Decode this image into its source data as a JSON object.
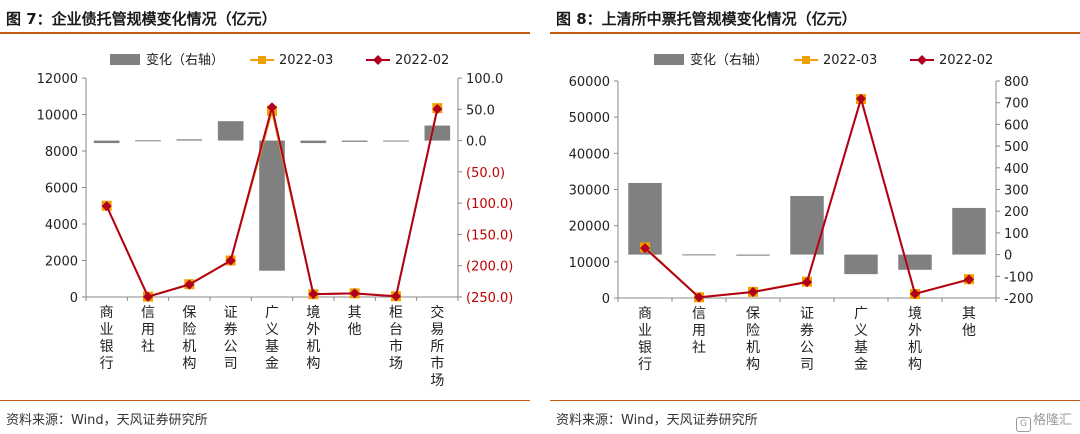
{
  "watermark": "格隆汇",
  "chart_data": [
    {
      "type": "bar",
      "title": "图 7：企业债托管规模变化情况（亿元）",
      "source": "资料来源：Wind，天风证券研究所",
      "categories": [
        "商业银行",
        "信用社",
        "保险机构",
        "证券公司",
        "广义基金",
        "境外机构",
        "其他",
        "柜台市场",
        "交易所市场"
      ],
      "legend": [
        "变化（右轴）",
        "2022-03",
        "2022-02"
      ],
      "series": [
        {
          "name": "变化（右轴）",
          "axis": "right",
          "kind": "bar",
          "color": "#808080",
          "values": [
            -4,
            0.5,
            2,
            31,
            -208,
            -4,
            -2,
            0,
            24
          ]
        },
        {
          "name": "2022-03",
          "axis": "left",
          "kind": "line",
          "color": "#f2a000",
          "values": [
            5000,
            20,
            700,
            2000,
            10200,
            150,
            200,
            40,
            10350
          ]
        },
        {
          "name": "2022-02",
          "axis": "left",
          "kind": "line",
          "color": "#b0001e",
          "values": [
            4980,
            15,
            680,
            1990,
            10400,
            155,
            198,
            38,
            10300
          ]
        }
      ],
      "y_left": {
        "min": 0,
        "max": 12000,
        "ticks": [
          "0",
          "2000",
          "4000",
          "6000",
          "8000",
          "10000",
          "12000"
        ]
      },
      "y_right": {
        "min": -250,
        "max": 100,
        "ticks": [
          "(250.0)",
          "(200.0)",
          "(150.0)",
          "(100.0)",
          "(50.0)",
          "0.0",
          "50.0",
          "100.0"
        ],
        "negative_color": "#c00000"
      }
    },
    {
      "type": "bar",
      "title": "图 8：上清所中票托管规模变化情况（亿元）",
      "source": "资料来源：Wind，天风证券研究所",
      "categories": [
        "商业银行",
        "信用社",
        "保险机构",
        "证券公司",
        "广义基金",
        "境外机构",
        "其他"
      ],
      "legend": [
        "变化（右轴）",
        "2022-03",
        "2022-02"
      ],
      "series": [
        {
          "name": "变化（右轴）",
          "axis": "right",
          "kind": "bar",
          "color": "#808080",
          "values": [
            330,
            1,
            -5,
            270,
            -90,
            -70,
            215
          ]
        },
        {
          "name": "2022-03",
          "axis": "left",
          "kind": "line",
          "color": "#f2a000",
          "values": [
            14000,
            200,
            1700,
            4500,
            55000,
            1100,
            5200
          ]
        },
        {
          "name": "2022-02",
          "axis": "left",
          "kind": "line",
          "color": "#b0001e",
          "values": [
            13800,
            190,
            1650,
            4400,
            55100,
            1150,
            5100
          ]
        }
      ],
      "y_left": {
        "min": 0,
        "max": 60000,
        "ticks": [
          "0",
          "10000",
          "20000",
          "30000",
          "40000",
          "50000",
          "60000"
        ]
      },
      "y_right": {
        "min": -200,
        "max": 800,
        "ticks": [
          "-200",
          "-100",
          "0",
          "100",
          "200",
          "300",
          "400",
          "500",
          "600",
          "700",
          "800"
        ]
      }
    }
  ]
}
